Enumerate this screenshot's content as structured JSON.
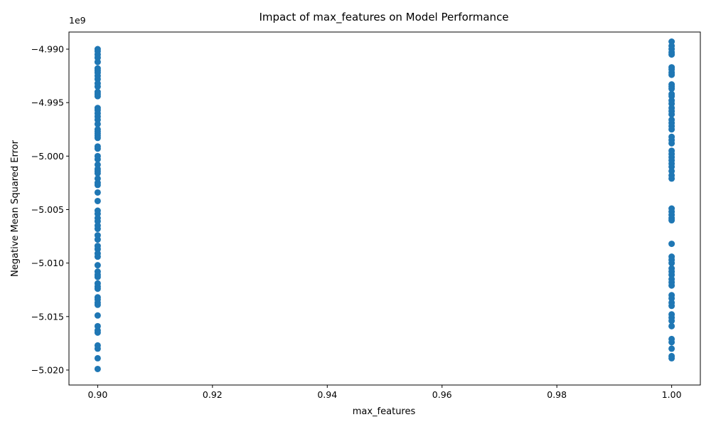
{
  "chart_data": {
    "type": "scatter",
    "title": "Impact of max_features on Model Performance",
    "xlabel": "max_features",
    "ylabel": "Negative Mean Squared Error",
    "y_offset_label": "1e9",
    "y_scale": 1000000000,
    "xlim": [
      0.895,
      1.005
    ],
    "ylim": [
      -5.0214,
      -4.9884
    ],
    "grid": false,
    "legend": "none",
    "marker_color": "#1f77b4",
    "x_ticks": [
      0.9,
      0.92,
      0.94,
      0.96,
      0.98,
      1.0
    ],
    "x_tick_labels": [
      "0.90",
      "0.92",
      "0.94",
      "0.96",
      "0.98",
      "1.00"
    ],
    "y_ticks": [
      -4.99,
      -4.995,
      -5.0,
      -5.005,
      -5.01,
      -5.015,
      -5.02
    ],
    "y_tick_labels": [
      "−4.990",
      "−4.995",
      "−5.000",
      "−5.005",
      "−5.010",
      "−5.015",
      "−5.020"
    ],
    "series": [
      {
        "x": 0.9,
        "y": [
          -4.99,
          -4.9902,
          -4.9905,
          -4.9908,
          -4.9912,
          -4.9918,
          -4.992,
          -4.9922,
          -4.9925,
          -4.9928,
          -4.9932,
          -4.9935,
          -4.994,
          -4.9942,
          -4.9944,
          -4.9955,
          -4.9957,
          -4.996,
          -4.9963,
          -4.9966,
          -4.997,
          -4.9975,
          -4.9977,
          -4.9979,
          -4.9981,
          -4.9983,
          -4.9991,
          -4.9993,
          -5.0,
          -5.0003,
          -5.0008,
          -5.0012,
          -5.0014,
          -5.0016,
          -5.0021,
          -5.0025,
          -5.0027,
          -5.0034,
          -5.0042,
          -5.0051,
          -5.0054,
          -5.0058,
          -5.0061,
          -5.0065,
          -5.0068,
          -5.0074,
          -5.0078,
          -5.0084,
          -5.0087,
          -5.0091,
          -5.0094,
          -5.0102,
          -5.0108,
          -5.0111,
          -5.0113,
          -5.0119,
          -5.0122,
          -5.0124,
          -5.0132,
          -5.0134,
          -5.0137,
          -5.0139,
          -5.0149,
          -5.0159,
          -5.0163,
          -5.0165,
          -5.0177,
          -5.018,
          -5.0189,
          -5.0199
        ]
      },
      {
        "x": 1.0,
        "y": [
          -4.9893,
          -4.9897,
          -4.99,
          -4.9903,
          -4.9905,
          -4.9917,
          -4.9919,
          -4.9922,
          -4.9924,
          -4.9933,
          -4.9935,
          -4.9937,
          -4.9942,
          -4.9944,
          -4.9948,
          -4.9951,
          -4.9955,
          -4.9958,
          -4.9961,
          -4.9966,
          -4.9969,
          -4.9972,
          -4.9975,
          -4.9982,
          -4.9985,
          -4.9988,
          -4.9995,
          -4.9998,
          -5.0001,
          -5.0004,
          -5.0007,
          -5.001,
          -5.0014,
          -5.0018,
          -5.0021,
          -5.0049,
          -5.0052,
          -5.0055,
          -5.0058,
          -5.006,
          -5.0082,
          -5.0094,
          -5.0097,
          -5.01,
          -5.0105,
          -5.0108,
          -5.0111,
          -5.0115,
          -5.0118,
          -5.0121,
          -5.013,
          -5.0133,
          -5.0137,
          -5.014,
          -5.0148,
          -5.0151,
          -5.0154,
          -5.0159,
          -5.0171,
          -5.0174,
          -5.018,
          -5.0187,
          -5.0189
        ]
      }
    ]
  }
}
